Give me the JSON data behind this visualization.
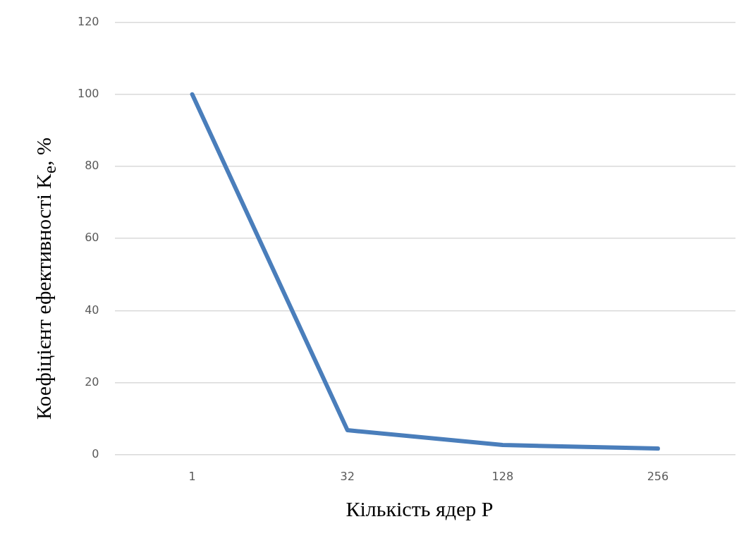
{
  "chart_data": {
    "type": "line",
    "xlabel": "Кількість ядер P",
    "ylabel": "Коефіцієнт ефективності K$_{е}$, %",
    "categories": [
      "1",
      "32",
      "128",
      "256"
    ],
    "series": [
      {
        "color": "#4a7ebb",
        "values": [
          100,
          6.8,
          2.7,
          1.7
        ]
      }
    ],
    "ylim": [
      0,
      120
    ],
    "yticks": [
      0,
      20,
      40,
      60,
      80,
      100,
      120
    ],
    "grid": "y",
    "legend": false,
    "marker": "none",
    "line_style": "solid"
  }
}
